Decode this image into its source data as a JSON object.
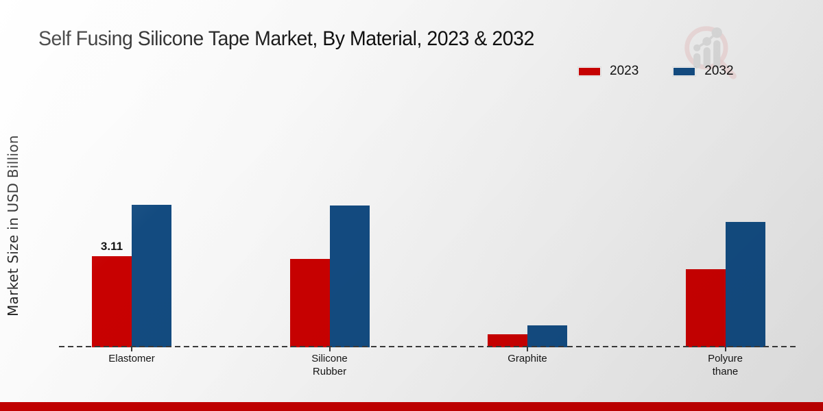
{
  "header": {
    "title": "Self Fusing Silicone Tape Market, By Material, 2023 & 2032"
  },
  "colors": {
    "series_2023": "#c80101",
    "series_2032": "#134b80",
    "footer_band": "#c00000",
    "baseline": "#3a3a3a",
    "title_text": "#101010"
  },
  "watermark": {
    "name": "magnifier-bar-chart-logo"
  },
  "chart_data": {
    "type": "bar",
    "title": "Self Fusing Silicone Tape Market, By Material, 2023 & 2032",
    "ylabel": "Market Size in USD Billion",
    "xlabel": "",
    "ylim": [
      0,
      5
    ],
    "grid": false,
    "legend_position": "top-right",
    "categories": [
      "Elastomer",
      "Silicone Rubber",
      "Graphite",
      "Polyurethane"
    ],
    "category_label_lines": [
      [
        "Elastomer"
      ],
      [
        "Silicone",
        "Rubber"
      ],
      [
        "Graphite"
      ],
      [
        "Polyure",
        "thane"
      ]
    ],
    "series": [
      {
        "name": "2023",
        "color": "#c80101",
        "values": [
          3.11,
          3.02,
          0.44,
          2.68
        ],
        "bar_labels": [
          "3.11",
          "",
          "",
          ""
        ]
      },
      {
        "name": "2032",
        "color": "#134b80",
        "values": [
          4.87,
          4.85,
          0.75,
          4.3
        ],
        "bar_labels": [
          "",
          "",
          "",
          ""
        ]
      }
    ]
  }
}
